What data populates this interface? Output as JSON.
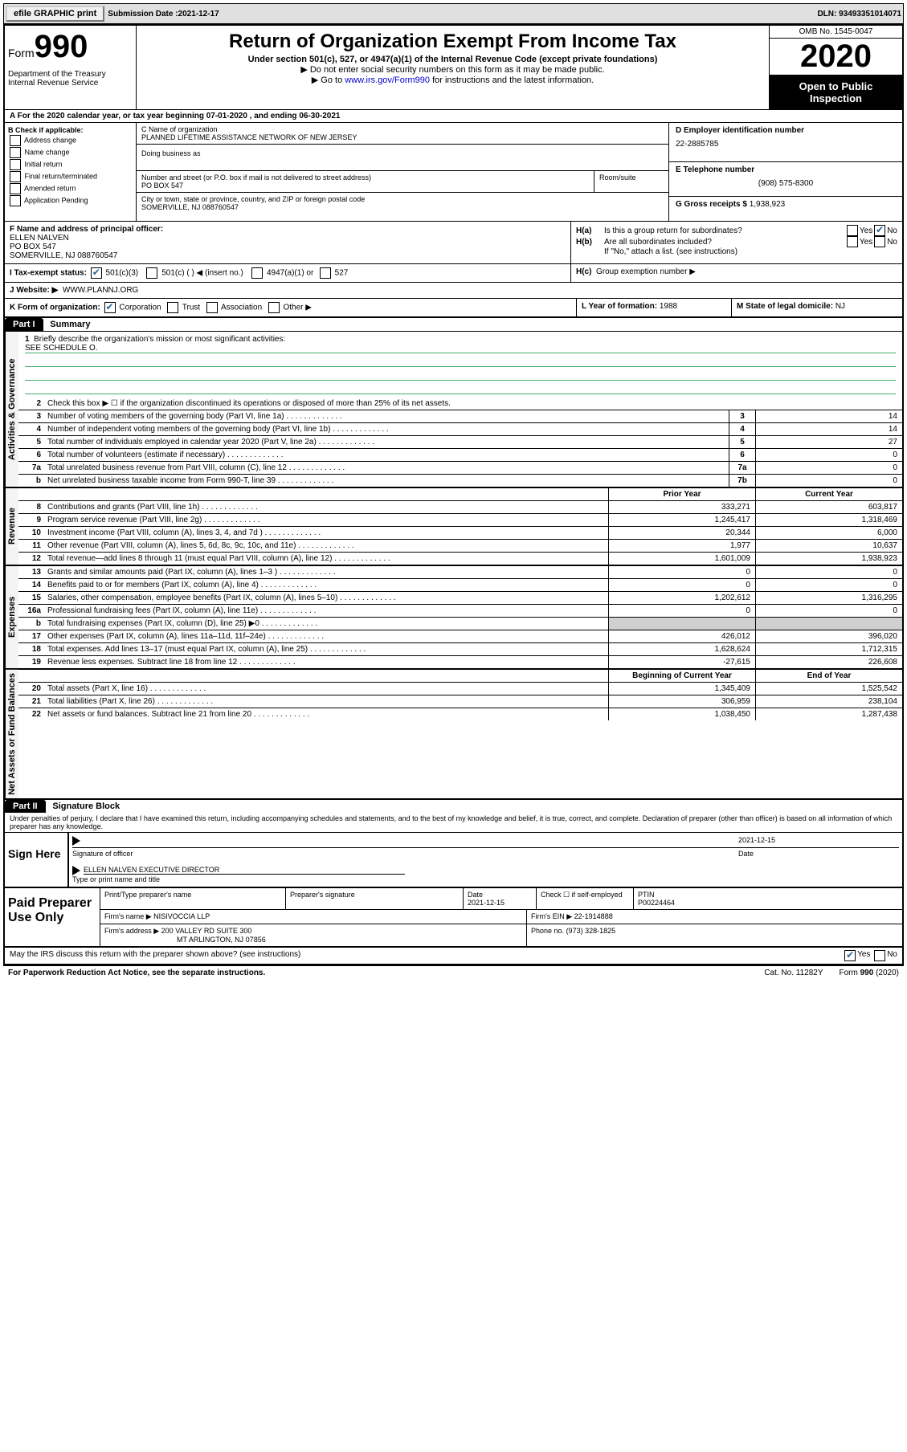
{
  "topbar": {
    "efile_label": "efile GRAPHIC print",
    "sub_label": "Submission Date :",
    "sub_date": "2021-12-17",
    "dln_label": "DLN:",
    "dln": "93493351014071"
  },
  "header": {
    "form_word": "Form",
    "form_num": "990",
    "dept": "Department of the Treasury\nInternal Revenue Service",
    "title": "Return of Organization Exempt From Income Tax",
    "sub": "Under section 501(c), 527, or 4947(a)(1) of the Internal Revenue Code (except private foundations)",
    "note1": "▶ Do not enter social security numbers on this form as it may be made public.",
    "note2_pre": "▶ Go to ",
    "note2_link": "www.irs.gov/Form990",
    "note2_post": " for instructions and the latest information.",
    "omb": "OMB No. 1545-0047",
    "year": "2020",
    "inspect": "Open to Public Inspection"
  },
  "row_a": "A For the 2020 calendar year, or tax year beginning 07-01-2020   , and ending 06-30-2021",
  "b": {
    "label": "B Check if applicable:",
    "opts": [
      "Address change",
      "Name change",
      "Initial return",
      "Final return/terminated",
      "Amended return",
      "Application Pending"
    ]
  },
  "c": {
    "name_label": "C Name of organization",
    "name": "PLANNED LIFETIME ASSISTANCE NETWORK OF NEW JERSEY",
    "dba_label": "Doing business as",
    "street_label": "Number and street (or P.O. box if mail is not delivered to street address)",
    "street": "PO BOX 547",
    "room_label": "Room/suite",
    "city_label": "City or town, state or province, country, and ZIP or foreign postal code",
    "city": "SOMERVILLE, NJ  088760547"
  },
  "d": {
    "label": "D Employer identification number",
    "value": "22-2885785"
  },
  "e": {
    "label": "E Telephone number",
    "value": "(908) 575-8300"
  },
  "g": {
    "label": "G Gross receipts $",
    "value": "1,938,923"
  },
  "f": {
    "label": "F Name and address of principal officer:",
    "name": "ELLEN NALVEN",
    "addr1": "PO BOX 547",
    "addr2": "SOMERVILLE, NJ  088760547"
  },
  "h": {
    "a_label": "H(a)",
    "a_text": "Is this a group return for subordinates?",
    "b_label": "H(b)",
    "b_text": "Are all subordinates included?",
    "note": "If \"No,\" attach a list. (see instructions)",
    "c_label": "H(c)",
    "c_text": "Group exemption number ▶",
    "yes": "Yes",
    "no": "No"
  },
  "i": {
    "label": "I  Tax-exempt status:",
    "opts": [
      "501(c)(3)",
      "501(c) (   ) ◀ (insert no.)",
      "4947(a)(1) or",
      "527"
    ]
  },
  "j": {
    "label": "J  Website: ▶",
    "value": "WWW.PLANNJ.ORG"
  },
  "k": {
    "label": "K Form of organization:",
    "opts": [
      "Corporation",
      "Trust",
      "Association",
      "Other ▶"
    ]
  },
  "l": {
    "label": "L Year of formation:",
    "value": "1988"
  },
  "m": {
    "label": "M State of legal domicile:",
    "value": "NJ"
  },
  "parts": {
    "p1_tag": "Part I",
    "p1_title": "Summary",
    "p2_tag": "Part II",
    "p2_title": "Signature Block"
  },
  "side_labels": {
    "gov": "Activities & Governance",
    "rev": "Revenue",
    "exp": "Expenses",
    "net": "Net Assets or Fund Balances"
  },
  "summary": {
    "mission_label": "Briefly describe the organization's mission or most significant activities:",
    "mission": "SEE SCHEDULE O.",
    "line2": "Check this box ▶ ☐  if the organization discontinued its operations or disposed of more than 25% of its net assets.",
    "rows_gov": [
      {
        "n": "3",
        "desc": "Number of voting members of the governing body (Part VI, line 1a)",
        "key": "3",
        "val": "14"
      },
      {
        "n": "4",
        "desc": "Number of independent voting members of the governing body (Part VI, line 1b)",
        "key": "4",
        "val": "14"
      },
      {
        "n": "5",
        "desc": "Total number of individuals employed in calendar year 2020 (Part V, line 2a)",
        "key": "5",
        "val": "27"
      },
      {
        "n": "6",
        "desc": "Total number of volunteers (estimate if necessary)",
        "key": "6",
        "val": "0"
      },
      {
        "n": "7a",
        "desc": "Total unrelated business revenue from Part VIII, column (C), line 12",
        "key": "7a",
        "val": "0"
      },
      {
        "n": "b",
        "desc": "Net unrelated business taxable income from Form 990-T, line 39",
        "key": "7b",
        "val": "0"
      }
    ],
    "col_headers": {
      "prior": "Prior Year",
      "current": "Current Year",
      "beg": "Beginning of Current Year",
      "end": "End of Year"
    },
    "rows_rev": [
      {
        "n": "8",
        "desc": "Contributions and grants (Part VIII, line 1h)",
        "prior": "333,271",
        "cur": "603,817"
      },
      {
        "n": "9",
        "desc": "Program service revenue (Part VIII, line 2g)",
        "prior": "1,245,417",
        "cur": "1,318,469"
      },
      {
        "n": "10",
        "desc": "Investment income (Part VIII, column (A), lines 3, 4, and 7d )",
        "prior": "20,344",
        "cur": "6,000"
      },
      {
        "n": "11",
        "desc": "Other revenue (Part VIII, column (A), lines 5, 6d, 8c, 9c, 10c, and 11e)",
        "prior": "1,977",
        "cur": "10,637"
      },
      {
        "n": "12",
        "desc": "Total revenue—add lines 8 through 11 (must equal Part VIII, column (A), line 12)",
        "prior": "1,601,009",
        "cur": "1,938,923"
      }
    ],
    "rows_exp": [
      {
        "n": "13",
        "desc": "Grants and similar amounts paid (Part IX, column (A), lines 1–3 )",
        "prior": "0",
        "cur": "0"
      },
      {
        "n": "14",
        "desc": "Benefits paid to or for members (Part IX, column (A), line 4)",
        "prior": "0",
        "cur": "0"
      },
      {
        "n": "15",
        "desc": "Salaries, other compensation, employee benefits (Part IX, column (A), lines 5–10)",
        "prior": "1,202,612",
        "cur": "1,316,295"
      },
      {
        "n": "16a",
        "desc": "Professional fundraising fees (Part IX, column (A), line 11e)",
        "prior": "0",
        "cur": "0"
      },
      {
        "n": "b",
        "desc": "Total fundraising expenses (Part IX, column (D), line 25) ▶0",
        "prior": "",
        "cur": "",
        "shade": true
      },
      {
        "n": "17",
        "desc": "Other expenses (Part IX, column (A), lines 11a–11d, 11f–24e)",
        "prior": "426,012",
        "cur": "396,020"
      },
      {
        "n": "18",
        "desc": "Total expenses. Add lines 13–17 (must equal Part IX, column (A), line 25)",
        "prior": "1,628,624",
        "cur": "1,712,315"
      },
      {
        "n": "19",
        "desc": "Revenue less expenses. Subtract line 18 from line 12",
        "prior": "-27,615",
        "cur": "226,608"
      }
    ],
    "rows_net": [
      {
        "n": "20",
        "desc": "Total assets (Part X, line 16)",
        "prior": "1,345,409",
        "cur": "1,525,542"
      },
      {
        "n": "21",
        "desc": "Total liabilities (Part X, line 26)",
        "prior": "306,959",
        "cur": "238,104"
      },
      {
        "n": "22",
        "desc": "Net assets or fund balances. Subtract line 21 from line 20",
        "prior": "1,038,450",
        "cur": "1,287,438"
      }
    ]
  },
  "penalties": "Under penalties of perjury, I declare that I have examined this return, including accompanying schedules and statements, and to the best of my knowledge and belief, it is true, correct, and complete. Declaration of preparer (other than officer) is based on all information of which preparer has any knowledge.",
  "sign": {
    "label": "Sign Here",
    "sig_label": "Signature of officer",
    "date_label": "Date",
    "date": "2021-12-15",
    "name": "ELLEN NALVEN  EXECUTIVE DIRECTOR",
    "name_label": "Type or print name and title"
  },
  "paid": {
    "label": "Paid Preparer Use Only",
    "h1": "Print/Type preparer's name",
    "h2": "Preparer's signature",
    "h3": "Date",
    "h3v": "2021-12-15",
    "h4": "Check ☐ if self-employed",
    "h5": "PTIN",
    "h5v": "P00224464",
    "firm_label": "Firm's name    ▶",
    "firm": "NISIVOCCIA LLP",
    "ein_label": "Firm's EIN ▶",
    "ein": "22-1914888",
    "addr_label": "Firm's address ▶",
    "addr1": "200 VALLEY RD SUITE 300",
    "addr2": "MT ARLINGTON, NJ  07856",
    "phone_label": "Phone no.",
    "phone": "(973) 328-1825"
  },
  "discuss": {
    "text": "May the IRS discuss this return with the preparer shown above? (see instructions)",
    "yes": "Yes",
    "no": "No"
  },
  "footer": {
    "left": "For Paperwork Reduction Act Notice, see the separate instructions.",
    "mid": "Cat. No. 11282Y",
    "right_pre": "Form ",
    "right_bold": "990",
    "right_post": " (2020)"
  }
}
